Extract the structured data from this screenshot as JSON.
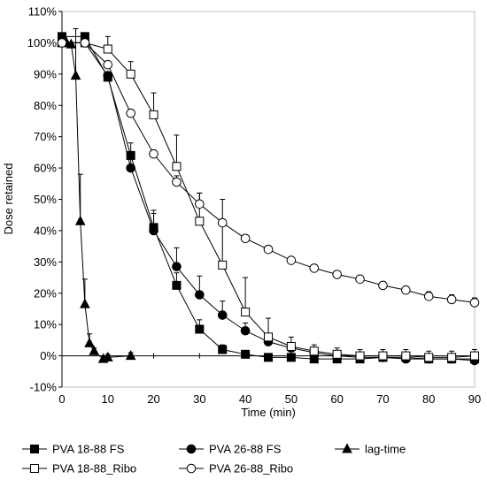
{
  "chart_data": {
    "type": "scatter",
    "title": "",
    "xlabel": "Time (min)",
    "ylabel": "Dose retained",
    "xlim": [
      0,
      90
    ],
    "ylim": [
      -10,
      110
    ],
    "xticks": [
      0,
      10,
      20,
      30,
      40,
      50,
      60,
      70,
      80,
      90
    ],
    "yticks": [
      -10,
      0,
      10,
      20,
      30,
      40,
      50,
      60,
      70,
      80,
      90,
      100,
      110
    ],
    "ytick_labels": [
      "-10%",
      "0%",
      "10%",
      "20%",
      "30%",
      "40%",
      "50%",
      "60%",
      "70%",
      "80%",
      "90%",
      "100%",
      "110%"
    ],
    "grid": false,
    "legend_position": "bottom",
    "series": [
      {
        "name": "PVA 18-88 FS",
        "marker": "square-filled",
        "color": "#000000",
        "x": [
          0,
          5,
          10,
          15,
          20,
          25,
          30,
          35,
          40,
          45,
          50,
          55,
          60,
          65,
          70,
          75,
          80,
          85,
          90
        ],
        "y": [
          102,
          102,
          89,
          64,
          41,
          22.5,
          8.5,
          2,
          0.5,
          -0.5,
          -0.5,
          -1,
          -1,
          -1,
          -0.5,
          -0.5,
          -1,
          -1,
          -1
        ],
        "err": [
          0,
          0,
          0,
          4,
          4.5,
          4,
          3,
          1.5,
          1,
          1,
          1,
          1,
          1,
          1,
          1,
          1,
          1,
          1,
          1
        ]
      },
      {
        "name": "PVA 26-88 FS",
        "marker": "circle-filled",
        "color": "#000000",
        "x": [
          0,
          5,
          10,
          15,
          20,
          25,
          30,
          35,
          40,
          45,
          50,
          55,
          60,
          65,
          70,
          75,
          80,
          85,
          90
        ],
        "y": [
          100,
          100,
          89.5,
          60,
          40,
          28.5,
          19.5,
          13,
          8,
          4.5,
          2.5,
          1,
          0,
          -0.5,
          -0.5,
          -1,
          -1,
          -1,
          -1.5
        ],
        "err": [
          0,
          0,
          0,
          4,
          6.5,
          6,
          6,
          4.5,
          2.5,
          1.5,
          1,
          1,
          1,
          1,
          1,
          1,
          1,
          1,
          1
        ]
      },
      {
        "name": "lag-time",
        "marker": "triangle-filled",
        "color": "#000000",
        "x": [
          0,
          1,
          2,
          3,
          4,
          5,
          6,
          7,
          9,
          10,
          15
        ],
        "y": [
          100,
          100,
          99.5,
          89.5,
          43,
          16.5,
          4,
          1.5,
          -1,
          -0.5,
          0
        ],
        "err": [
          0,
          0,
          0,
          15,
          15,
          8,
          3,
          1,
          1,
          1,
          1
        ]
      },
      {
        "name": "PVA 18-88_Ribo",
        "marker": "square-open",
        "color": "#000000",
        "x": [
          0,
          5,
          10,
          15,
          20,
          25,
          30,
          35,
          40,
          45,
          50,
          55,
          60,
          65,
          70,
          75,
          80,
          85,
          90
        ],
        "y": [
          100,
          100,
          98,
          90,
          77,
          60.5,
          43,
          29,
          14,
          6,
          3,
          1.5,
          0.5,
          0,
          0,
          0,
          -0.5,
          -0.5,
          0
        ],
        "err": [
          0,
          0,
          4,
          4,
          7,
          10,
          9,
          21,
          11,
          6,
          3,
          2,
          2,
          2,
          2,
          2,
          2,
          2,
          2
        ]
      },
      {
        "name": "PVA 26-88_Ribo",
        "marker": "circle-open",
        "color": "#000000",
        "x": [
          0,
          5,
          10,
          15,
          20,
          25,
          30,
          35,
          40,
          45,
          50,
          55,
          60,
          65,
          70,
          75,
          80,
          85,
          90
        ],
        "y": [
          100,
          100,
          93,
          77.5,
          64.5,
          55.5,
          48.5,
          42.5,
          37.5,
          34,
          30.5,
          28,
          26,
          24.5,
          22.5,
          21,
          19,
          18,
          17
        ],
        "err": [
          0,
          0,
          0,
          0,
          0,
          2,
          3.5,
          0,
          0,
          0,
          0,
          1,
          1,
          1,
          1,
          1,
          1.5,
          1.5,
          1.5
        ]
      }
    ]
  }
}
